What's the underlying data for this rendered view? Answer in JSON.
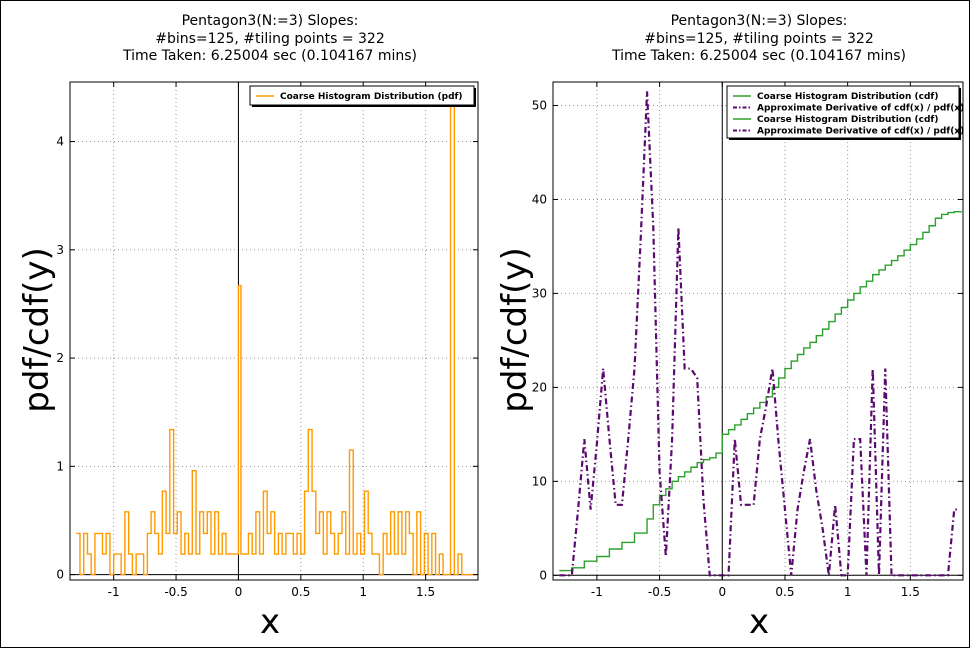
{
  "chart_data": [
    {
      "type": "line",
      "title_lines": [
        "Pentagon3(N:=3) Slopes:",
        "#bins=125, #tiling points = 322",
        "Time Taken: 6.25004 sec (0.104167 mins)"
      ],
      "xlabel": "x",
      "ylabel": "pdf/cdf(y)",
      "xlim": [
        -1.35,
        1.92
      ],
      "ylim": [
        -0.05,
        4.55
      ],
      "xticks": [
        -1,
        -0.5,
        0,
        0.5,
        1,
        1.5
      ],
      "xtick_labels": [
        "-1",
        "-0.5",
        "0",
        "0.5",
        "1",
        "1.5"
      ],
      "yticks": [
        0,
        1,
        2,
        3,
        4
      ],
      "ytick_labels": [
        "0",
        "1",
        "2",
        "3",
        "4"
      ],
      "grid": true,
      "legend_position": "top-right",
      "colors": {
        "pdf": "#ff9900"
      },
      "series": [
        {
          "name": "Coarse Histogram Distribution (pdf)",
          "style": "steps",
          "color": "#ff9900",
          "x": [
            -1.3,
            -1.27,
            -1.24,
            -1.21,
            -1.18,
            -1.15,
            -1.12,
            -1.09,
            -1.06,
            -1.03,
            -1.0,
            -0.97,
            -0.94,
            -0.91,
            -0.88,
            -0.85,
            -0.82,
            -0.79,
            -0.76,
            -0.73,
            -0.7,
            -0.67,
            -0.64,
            -0.61,
            -0.58,
            -0.55,
            -0.52,
            -0.49,
            -0.46,
            -0.43,
            -0.4,
            -0.37,
            -0.34,
            -0.31,
            -0.28,
            -0.25,
            -0.22,
            -0.19,
            -0.16,
            -0.13,
            -0.1,
            -0.07,
            -0.04,
            -0.01,
            0.0,
            0.02,
            0.05,
            0.08,
            0.11,
            0.14,
            0.17,
            0.2,
            0.23,
            0.26,
            0.29,
            0.32,
            0.35,
            0.38,
            0.41,
            0.44,
            0.47,
            0.5,
            0.53,
            0.56,
            0.59,
            0.62,
            0.65,
            0.68,
            0.71,
            0.74,
            0.77,
            0.8,
            0.83,
            0.86,
            0.89,
            0.92,
            0.95,
            0.98,
            1.01,
            1.04,
            1.07,
            1.1,
            1.13,
            1.16,
            1.19,
            1.22,
            1.25,
            1.28,
            1.31,
            1.34,
            1.37,
            1.4,
            1.43,
            1.46,
            1.49,
            1.52,
            1.55,
            1.58,
            1.61,
            1.64,
            1.67,
            1.7,
            1.73,
            1.76,
            1.79,
            1.82,
            1.85,
            1.88
          ],
          "y": [
            0.38,
            0,
            0.38,
            0.19,
            0,
            0.38,
            0.38,
            0.19,
            0.38,
            0,
            0.19,
            0.19,
            0,
            0.58,
            0.19,
            0,
            0.19,
            0.19,
            0,
            0.38,
            0.58,
            0.38,
            0.19,
            0.77,
            0.38,
            1.34,
            0.38,
            0.58,
            0.19,
            0.38,
            0.19,
            0.96,
            0.19,
            0.58,
            0.38,
            0.58,
            0.19,
            0.58,
            0.19,
            0.38,
            0.19,
            0.19,
            0.19,
            0.19,
            2.67,
            0.19,
            0.19,
            0.38,
            0.19,
            0.58,
            0.19,
            0.77,
            0.38,
            0.58,
            0.19,
            0.38,
            0.19,
            0.38,
            0.38,
            0.19,
            0.38,
            0.19,
            0.77,
            1.34,
            0.77,
            0.38,
            0.58,
            0.19,
            0.58,
            0.38,
            0.19,
            0.38,
            0.58,
            0.19,
            1.15,
            0.19,
            0.38,
            0.19,
            0.77,
            0.38,
            0.19,
            0.19,
            0,
            0.38,
            0.19,
            0.58,
            0.19,
            0.58,
            0.19,
            0.58,
            0.38,
            0,
            0.58,
            0,
            0.38,
            0,
            0.38,
            0,
            0.19,
            0,
            0,
            4.45,
            0,
            0.19,
            0,
            0,
            0,
            0
          ]
        }
      ]
    },
    {
      "type": "line",
      "title_lines": [
        "Pentagon3(N:=3) Slopes:",
        "#bins=125, #tiling points = 322",
        "Time Taken: 6.25004 sec (0.104167 mins)"
      ],
      "xlabel": "x",
      "ylabel": "pdf/cdf(y)",
      "xlim": [
        -1.35,
        1.92
      ],
      "ylim": [
        -0.5,
        52.5
      ],
      "xticks": [
        -1,
        -0.5,
        0,
        0.5,
        1,
        1.5
      ],
      "xtick_labels": [
        "-1",
        "-0.5",
        "0",
        "0.5",
        "1",
        "1.5"
      ],
      "yticks": [
        0,
        10,
        20,
        30,
        40,
        50
      ],
      "ytick_labels": [
        "0",
        "10",
        "20",
        "30",
        "40",
        "50"
      ],
      "grid": true,
      "legend_position": "top-right",
      "legend_entries": [
        {
          "name": "Coarse Histogram Distribution (cdf)",
          "color": "#2ca02c",
          "style": "solid"
        },
        {
          "name": "Approximate Derivative of cdf(x) / pdf(x)",
          "color": "#5a0a6e",
          "style": "dashdot"
        },
        {
          "name": "Coarse Histogram Distribution (cdf)",
          "color": "#2ca02c",
          "style": "solid"
        },
        {
          "name": "Approximate Derivative of cdf(x) / pdf(x)",
          "color": "#5a0a6e",
          "style": "dashdot"
        }
      ],
      "series": [
        {
          "name": "Coarse Histogram Distribution (cdf)",
          "style": "steps",
          "color": "#2ca02c",
          "x": [
            -1.3,
            -1.2,
            -1.1,
            -1.0,
            -0.9,
            -0.8,
            -0.7,
            -0.6,
            -0.55,
            -0.5,
            -0.45,
            -0.4,
            -0.35,
            -0.3,
            -0.25,
            -0.2,
            -0.15,
            -0.1,
            -0.05,
            0.0,
            0.05,
            0.1,
            0.15,
            0.2,
            0.25,
            0.3,
            0.35,
            0.4,
            0.45,
            0.5,
            0.55,
            0.6,
            0.65,
            0.7,
            0.75,
            0.8,
            0.85,
            0.9,
            0.95,
            1.0,
            1.05,
            1.1,
            1.15,
            1.2,
            1.25,
            1.3,
            1.35,
            1.4,
            1.45,
            1.5,
            1.55,
            1.6,
            1.65,
            1.7,
            1.75,
            1.8,
            1.85,
            1.88
          ],
          "y": [
            0.5,
            0.8,
            1.5,
            2.0,
            2.8,
            3.5,
            4.5,
            6.0,
            7.5,
            8.5,
            9.2,
            10.0,
            10.5,
            11.0,
            11.5,
            12.0,
            12.3,
            12.5,
            13.0,
            15.0,
            15.5,
            16.0,
            16.6,
            17.2,
            17.8,
            18.4,
            19.0,
            20.0,
            21.0,
            22.0,
            22.8,
            23.5,
            24.2,
            24.8,
            25.5,
            26.2,
            27.0,
            27.8,
            28.5,
            29.3,
            30.0,
            30.7,
            31.3,
            32.0,
            32.5,
            33.0,
            33.5,
            34.0,
            34.6,
            35.2,
            35.8,
            36.5,
            37.2,
            38.0,
            38.4,
            38.6,
            38.7,
            38.7
          ]
        },
        {
          "name": "Approximate Derivative of cdf(x) / pdf(x)",
          "style": "dashdot",
          "color": "#5a0a6e",
          "x": [
            -1.3,
            -1.25,
            -1.2,
            -1.15,
            -1.1,
            -1.05,
            -1.0,
            -0.95,
            -0.9,
            -0.85,
            -0.8,
            -0.75,
            -0.7,
            -0.65,
            -0.6,
            -0.55,
            -0.5,
            -0.45,
            -0.4,
            -0.35,
            -0.3,
            -0.25,
            -0.2,
            -0.15,
            -0.1,
            -0.05,
            0.0,
            0.05,
            0.1,
            0.15,
            0.2,
            0.25,
            0.3,
            0.35,
            0.4,
            0.45,
            0.5,
            0.55,
            0.6,
            0.65,
            0.7,
            0.75,
            0.8,
            0.85,
            0.9,
            0.95,
            1.0,
            1.05,
            1.1,
            1.15,
            1.2,
            1.25,
            1.3,
            1.35,
            1.4,
            1.45,
            1.5,
            1.55,
            1.6,
            1.65,
            1.7,
            1.75,
            1.8,
            1.85,
            1.88
          ],
          "y": [
            0,
            0,
            0,
            7,
            14.5,
            7,
            14,
            22,
            14.5,
            7.5,
            7.5,
            14.5,
            22,
            36,
            51.5,
            37,
            11,
            2,
            14.5,
            37,
            22,
            22,
            21,
            8,
            0,
            0,
            0,
            0,
            14.5,
            7.5,
            7.5,
            7.5,
            14.5,
            18,
            22,
            14,
            7,
            0,
            7,
            11,
            14.5,
            9,
            5,
            0,
            7.5,
            0,
            0,
            14.5,
            14.5,
            0,
            22,
            0,
            22,
            0,
            0,
            0,
            0,
            0,
            0,
            0,
            0,
            0,
            0,
            7,
            7
          ]
        }
      ]
    }
  ]
}
